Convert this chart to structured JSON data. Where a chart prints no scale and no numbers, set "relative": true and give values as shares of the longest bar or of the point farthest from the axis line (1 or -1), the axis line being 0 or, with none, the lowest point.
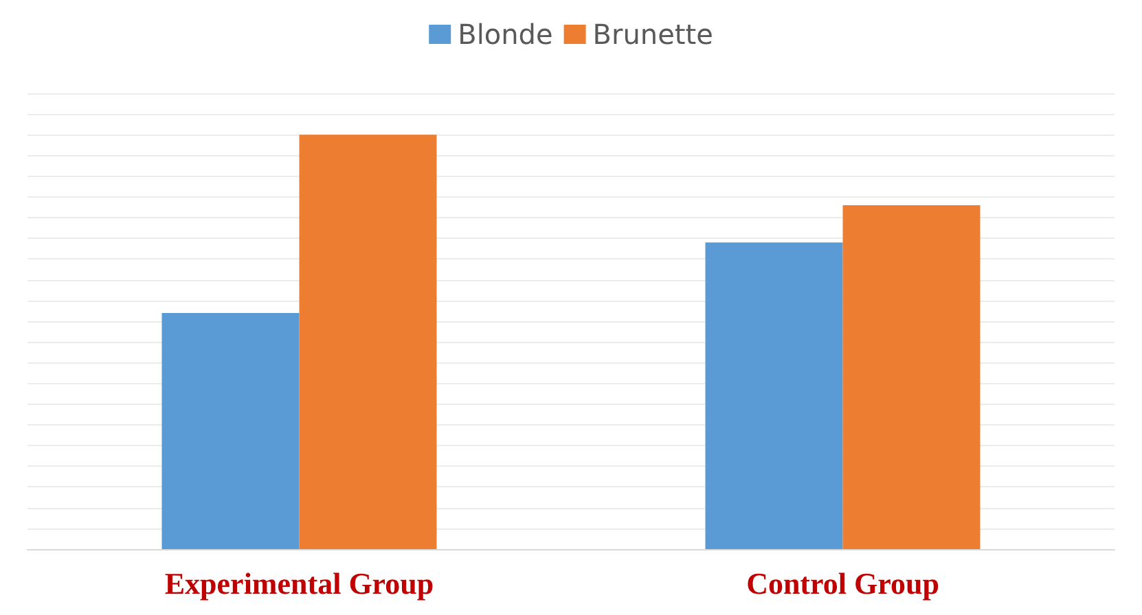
{
  "chart_data": {
    "type": "bar",
    "relative": true,
    "categories": [
      "Experimental Group",
      "Control Group"
    ],
    "series": [
      {
        "name": "Blonde",
        "color": "#5b9bd5",
        "values": [
          0.57,
          0.74
        ]
      },
      {
        "name": "Brunette",
        "color": "#ed7d31",
        "values": [
          1,
          0.83
        ]
      }
    ],
    "grid": "y",
    "legend": "top"
  }
}
